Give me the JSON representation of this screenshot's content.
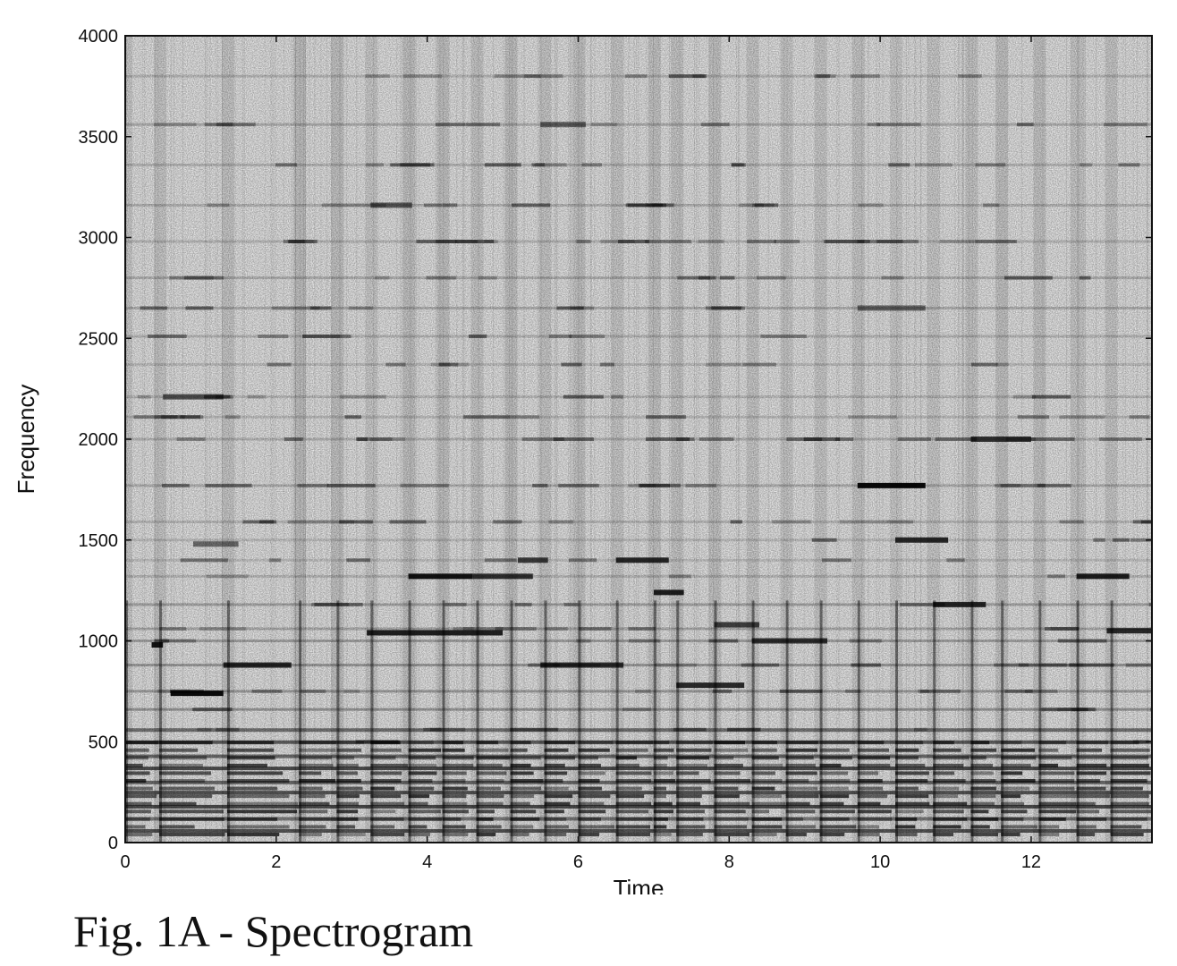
{
  "caption": "Fig. 1A - Spectrogram",
  "chart_data": {
    "type": "heatmap",
    "title": "",
    "xlabel": "Time",
    "ylabel": "Frequency",
    "xlim": [
      0,
      13.6
    ],
    "ylim": [
      0,
      4000
    ],
    "x_ticks": [
      0,
      2,
      4,
      6,
      8,
      10,
      12
    ],
    "y_ticks": [
      0,
      500,
      1000,
      1500,
      2000,
      2500,
      3000,
      3500,
      4000
    ],
    "colormap": "grayscale (white = low energy, black = high energy)",
    "grid": false,
    "onsets": [
      0.0,
      0.45,
      1.35,
      2.3,
      2.8,
      3.25,
      3.75,
      4.2,
      4.65,
      5.1,
      5.55,
      6.0,
      6.5,
      7.0,
      7.3,
      7.8,
      8.3,
      8.75,
      9.2,
      9.7,
      10.2,
      10.7,
      11.2,
      11.6,
      12.1,
      12.6,
      13.05
    ],
    "harmonic_lines_hz": [
      60,
      120,
      180,
      250,
      300,
      370,
      430,
      500,
      560,
      660,
      750,
      880,
      1000,
      1060,
      1180,
      1320,
      1400,
      1500,
      1590,
      1770,
      2000,
      2110,
      2210,
      2370,
      2510,
      2650,
      2800,
      2980,
      3160,
      3360,
      3560,
      3800
    ],
    "notes": [
      {
        "t0": 0.35,
        "t1": 0.5,
        "f": 980,
        "level": 0.9
      },
      {
        "t0": 0.6,
        "t1": 1.3,
        "f": 740,
        "level": 0.95
      },
      {
        "t0": 1.3,
        "t1": 2.2,
        "f": 880,
        "level": 0.8
      },
      {
        "t0": 0.5,
        "t1": 1.3,
        "f": 2210,
        "level": 0.6
      },
      {
        "t0": 0.9,
        "t1": 1.5,
        "f": 1480,
        "level": 0.5
      },
      {
        "t0": 3.2,
        "t1": 5.0,
        "f": 1040,
        "level": 0.85
      },
      {
        "t0": 3.75,
        "t1": 4.6,
        "f": 1320,
        "level": 0.9
      },
      {
        "t0": 4.6,
        "t1": 5.4,
        "f": 1320,
        "level": 0.75
      },
      {
        "t0": 5.2,
        "t1": 5.6,
        "f": 1400,
        "level": 0.7
      },
      {
        "t0": 5.5,
        "t1": 6.6,
        "f": 880,
        "level": 0.75
      },
      {
        "t0": 6.5,
        "t1": 7.2,
        "f": 1400,
        "level": 0.8
      },
      {
        "t0": 7.0,
        "t1": 7.4,
        "f": 1240,
        "level": 0.85
      },
      {
        "t0": 7.3,
        "t1": 8.2,
        "f": 780,
        "level": 0.8
      },
      {
        "t0": 7.8,
        "t1": 8.4,
        "f": 1080,
        "level": 0.7
      },
      {
        "t0": 8.3,
        "t1": 9.3,
        "f": 1000,
        "level": 0.75
      },
      {
        "t0": 9.7,
        "t1": 10.6,
        "f": 1770,
        "level": 0.95
      },
      {
        "t0": 10.2,
        "t1": 10.9,
        "f": 1500,
        "level": 0.8
      },
      {
        "t0": 10.7,
        "t1": 11.4,
        "f": 1180,
        "level": 0.8
      },
      {
        "t0": 11.2,
        "t1": 12.0,
        "f": 2000,
        "level": 0.75
      },
      {
        "t0": 12.6,
        "t1": 13.3,
        "f": 1320,
        "level": 0.85
      },
      {
        "t0": 13.0,
        "t1": 13.6,
        "f": 1050,
        "level": 0.8
      },
      {
        "t0": 3.25,
        "t1": 3.8,
        "f": 3160,
        "level": 0.55
      },
      {
        "t0": 5.5,
        "t1": 6.1,
        "f": 3560,
        "level": 0.5
      },
      {
        "t0": 9.7,
        "t1": 10.6,
        "f": 2650,
        "level": 0.5
      }
    ]
  }
}
